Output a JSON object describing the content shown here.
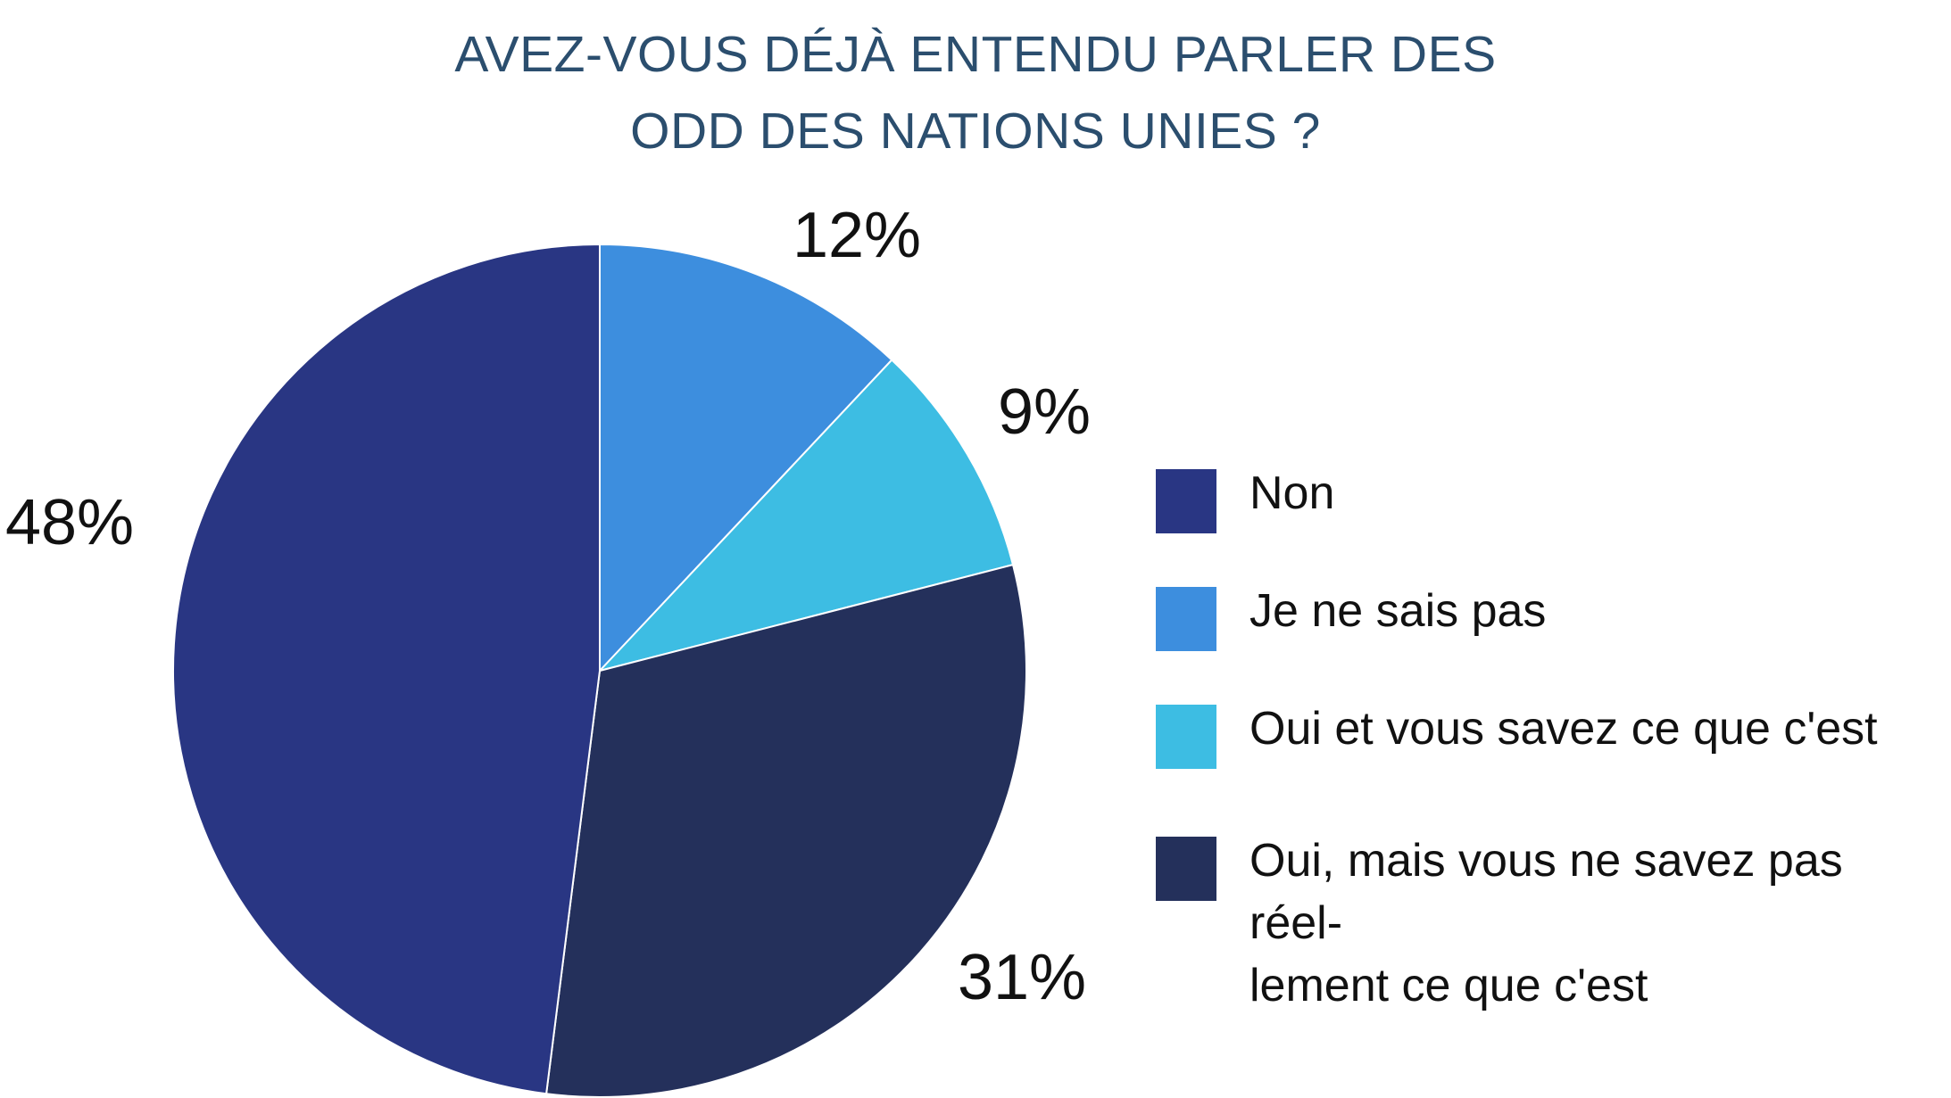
{
  "title": {
    "line1": "AVEZ-VOUS DÉJÀ ENTENDU PARLER DES",
    "line2": "ODD DES NATIONS UNIES ?"
  },
  "colors": {
    "title": "#2b4e6e",
    "non": "#293683",
    "je_ne_sais_pas": "#3d8ede",
    "oui_savez": "#3dbde3",
    "oui_pas_reellement": "#24305b"
  },
  "chart_data": {
    "type": "pie",
    "title": "AVEZ-VOUS DÉJÀ ENTENDU PARLER DES ODD DES NATIONS UNIES ?",
    "start_angle_deg": 0,
    "direction": "clockwise",
    "legend_position": "right",
    "slices": [
      {
        "label": "Je ne sais pas",
        "value": 12,
        "display": "12%",
        "color": "#3d8ede"
      },
      {
        "label": "Oui et vous savez ce que c'est",
        "value": 9,
        "display": "9%",
        "color": "#3dbde3"
      },
      {
        "label": "Oui, mais vous ne savez pas réellement ce que c'est",
        "value": 31,
        "display": "31%",
        "color": "#24305b"
      },
      {
        "label": "Non",
        "value": 48,
        "display": "48%",
        "color": "#293683"
      }
    ]
  },
  "legend": {
    "items": [
      {
        "label": "Non",
        "color": "#293683"
      },
      {
        "label": "Je ne sais pas",
        "color": "#3d8ede"
      },
      {
        "label": "Oui et vous savez ce que c'est",
        "color": "#3dbde3"
      },
      {
        "label": "Oui, mais vous ne savez pas réel-\nlement ce que c'est",
        "color": "#24305b"
      }
    ]
  }
}
